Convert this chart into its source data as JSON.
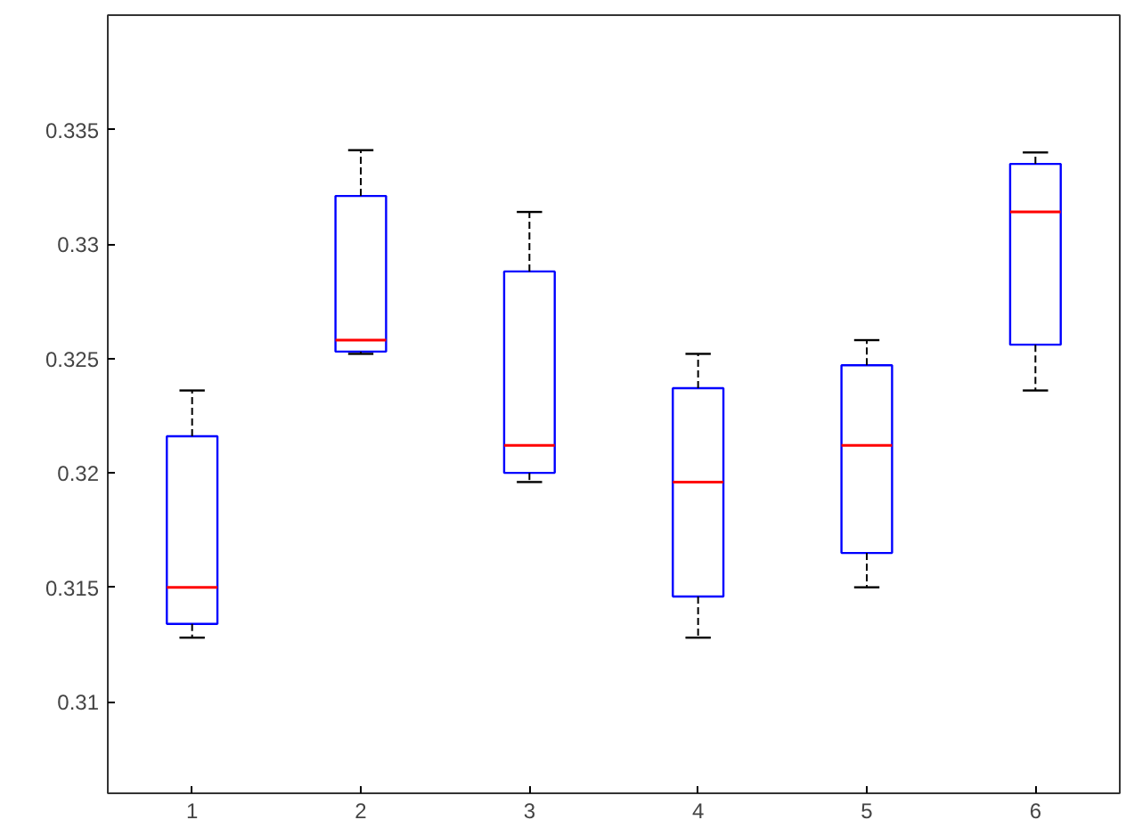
{
  "chart_data": {
    "type": "box",
    "categories": [
      "1",
      "2",
      "3",
      "4",
      "5",
      "6"
    ],
    "boxes": [
      {
        "low": 0.3128,
        "q1": 0.3134,
        "median": 0.315,
        "q3": 0.3216,
        "high": 0.3236
      },
      {
        "low": 0.3252,
        "q1": 0.3253,
        "median": 0.3258,
        "q3": 0.3321,
        "high": 0.3341
      },
      {
        "low": 0.3196,
        "q1": 0.32,
        "median": 0.3212,
        "q3": 0.3288,
        "high": 0.3314
      },
      {
        "low": 0.3128,
        "q1": 0.3146,
        "median": 0.3196,
        "q3": 0.3237,
        "high": 0.3252
      },
      {
        "low": 0.315,
        "q1": 0.3165,
        "median": 0.3212,
        "q3": 0.3247,
        "high": 0.3258
      },
      {
        "low": 0.3236,
        "q1": 0.3256,
        "median": 0.3314,
        "q3": 0.3335,
        "high": 0.334
      }
    ],
    "color": "#0000ff",
    "ylim": [
      0.306,
      0.34
    ],
    "yticks": [
      0.31,
      0.315,
      0.32,
      0.325,
      0.33,
      0.335
    ],
    "grid": false
  }
}
